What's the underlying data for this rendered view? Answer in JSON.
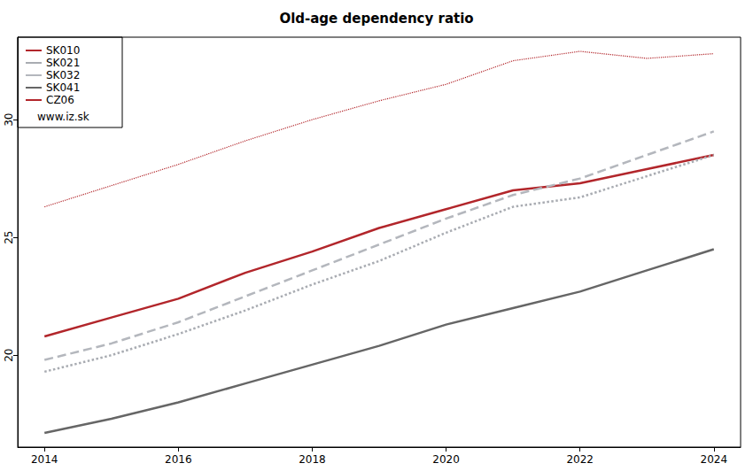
{
  "chart_data": {
    "type": "line",
    "title": "Old-age dependency ratio",
    "x": [
      2014,
      2015,
      2016,
      2017,
      2018,
      2019,
      2020,
      2021,
      2022,
      2023,
      2024
    ],
    "xlim": [
      2013.6,
      2024.4
    ],
    "xticks": [
      2014,
      2016,
      2018,
      2020,
      2022,
      2024
    ],
    "ylim": [
      16.1,
      33.5
    ],
    "yticks": [
      20,
      25,
      30
    ],
    "grid": false,
    "legend": "top-left",
    "annotations": [
      "www.iz.sk"
    ],
    "marker": "none",
    "series": [
      {
        "name": "SK010",
        "color": "#b2262b",
        "line_style": "solid",
        "values": [
          20.8,
          21.6,
          22.4,
          23.5,
          24.4,
          25.4,
          26.2,
          27.0,
          27.3,
          27.9,
          28.5
        ]
      },
      {
        "name": "SK021",
        "color": "#a9acb2",
        "line_style": "dotted",
        "values": [
          19.3,
          20.0,
          20.9,
          21.9,
          23.0,
          24.0,
          25.2,
          26.3,
          26.7,
          27.6,
          28.5
        ]
      },
      {
        "name": "SK032",
        "color": "#b4b7bd",
        "line_style": "dashed",
        "values": [
          19.8,
          20.5,
          21.4,
          22.5,
          23.6,
          24.7,
          25.8,
          26.8,
          27.5,
          28.5,
          29.5
        ]
      },
      {
        "name": "SK041",
        "color": "#666666",
        "line_style": "solid",
        "values": [
          16.7,
          17.3,
          18.0,
          18.8,
          19.6,
          20.4,
          21.3,
          22.0,
          22.7,
          23.6,
          24.5
        ]
      },
      {
        "name": "CZ06",
        "color": "#b2262b",
        "line_style": "dotted",
        "values": [
          26.3,
          27.2,
          28.1,
          29.1,
          30.0,
          30.8,
          31.5,
          32.5,
          32.9,
          32.6,
          32.8
        ]
      }
    ]
  }
}
